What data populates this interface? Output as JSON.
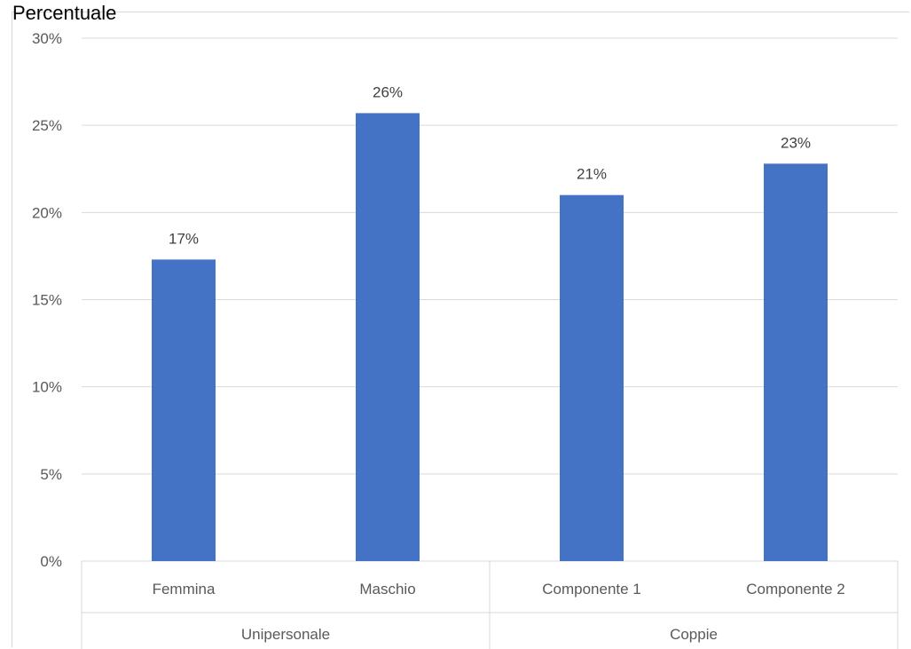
{
  "chart_data": {
    "type": "bar",
    "ylabel": "Percentuale",
    "xlabel": "",
    "title": "",
    "ylim": [
      0,
      30
    ],
    "y_ticks": [
      "0%",
      "5%",
      "10%",
      "15%",
      "20%",
      "25%",
      "30%"
    ],
    "y_tick_values": [
      0,
      5,
      10,
      15,
      20,
      25,
      30
    ],
    "grid": true,
    "categories": [
      "Femmina",
      "Maschio",
      "Componente 1",
      "Componente 2"
    ],
    "groups": [
      {
        "name": "Unipersonale",
        "categories": [
          "Femmina",
          "Maschio"
        ]
      },
      {
        "name": "Coppie",
        "categories": [
          "Componente 1",
          "Componente 2"
        ]
      }
    ],
    "values": [
      17.3,
      25.7,
      21.0,
      22.8
    ],
    "data_labels": [
      "17%",
      "26%",
      "21%",
      "23%"
    ],
    "bar_color": "#4472c4",
    "grid_color": "#d9d9d9"
  }
}
